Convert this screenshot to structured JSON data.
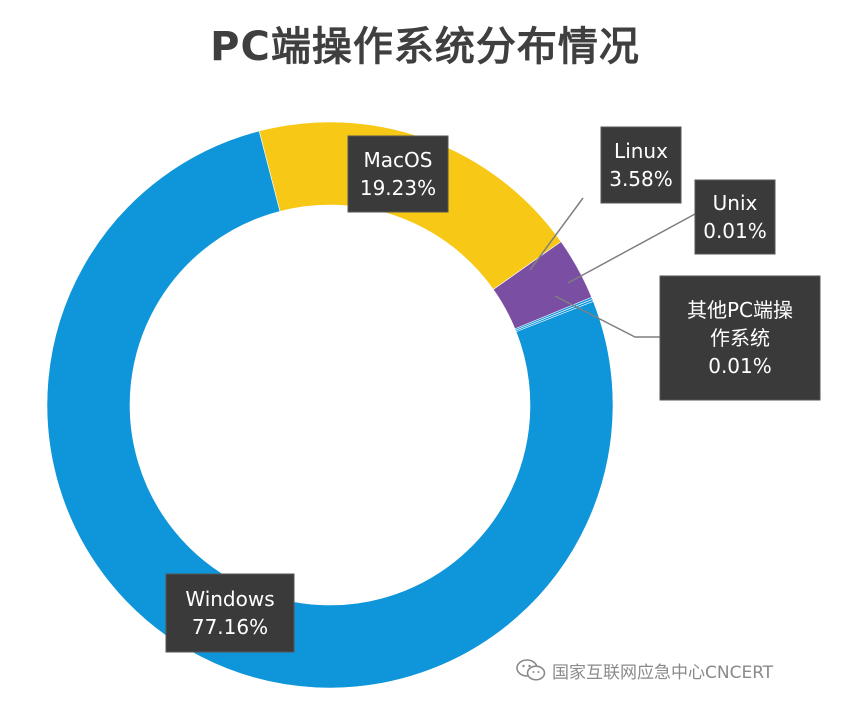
{
  "chart_data": {
    "type": "pie",
    "variant": "donut",
    "title": "PC端操作系统分布情况",
    "slices": [
      {
        "label": "Windows",
        "value": 77.16,
        "value_label": "77.16%",
        "color": "#0f95d9"
      },
      {
        "label": "MacOS",
        "value": 19.23,
        "value_label": "19.23%",
        "color": "#f7c816"
      },
      {
        "label": "Linux",
        "value": 3.58,
        "value_label": "3.58%",
        "color": "#7a4fa3"
      },
      {
        "label": "Unix",
        "value": 0.01,
        "value_label": "0.01%",
        "color": "#0f95d9"
      },
      {
        "label": "其他PC端操作系统",
        "label_lines": [
          "其他PC端操",
          "作系统"
        ],
        "value": 0.01,
        "value_label": "0.01%",
        "color": "#0f95d9"
      }
    ]
  },
  "watermark": {
    "text": "国家互联网应急中心CNCERT",
    "icon": "wechat-icon"
  }
}
